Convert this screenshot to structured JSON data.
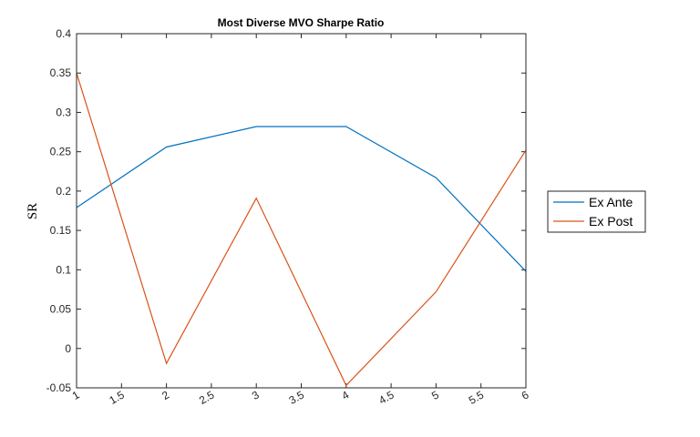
{
  "chart_data": {
    "type": "line",
    "title": "Most Diverse MVO Sharpe Ratio",
    "xlabel": "",
    "ylabel": "SR",
    "xlim": [
      1,
      6
    ],
    "ylim": [
      -0.05,
      0.4
    ],
    "x": [
      1,
      2,
      3,
      4,
      5,
      6
    ],
    "x_ticks": [
      "1",
      "1.5",
      "2",
      "2.5",
      "3",
      "3.5",
      "4",
      "4.5",
      "5",
      "5.5",
      "6"
    ],
    "y_ticks": [
      "-0.05",
      "0",
      "0.05",
      "0.1",
      "0.15",
      "0.2",
      "0.25",
      "0.3",
      "0.35",
      "0.4"
    ],
    "grid": false,
    "legend_position": "outside-right",
    "series": [
      {
        "name": "Ex Ante",
        "color": "#0072BD",
        "values": [
          0.179,
          0.256,
          0.282,
          0.282,
          0.217,
          0.098
        ]
      },
      {
        "name": "Ex Post",
        "color": "#D95319",
        "values": [
          0.35,
          -0.019,
          0.191,
          -0.047,
          0.072,
          0.252
        ]
      }
    ]
  }
}
